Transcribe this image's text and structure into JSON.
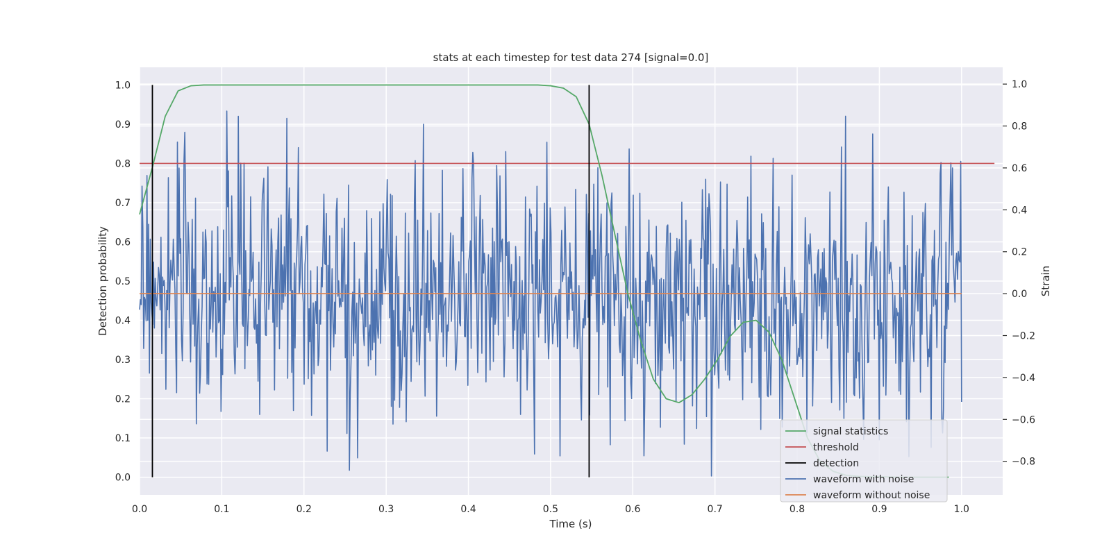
{
  "chart_data": {
    "type": "line",
    "title": "stats at each timestep for test data 274 [signal=0.0]",
    "xlabel": "Time (s)",
    "ylabel": "Detection probability",
    "y2label": "Strain",
    "xlim": [
      0.0,
      1.05
    ],
    "ylim": [
      -0.045,
      1.045
    ],
    "y2lim": [
      -0.96,
      1.08
    ],
    "xticks": [
      0.0,
      0.1,
      0.2,
      0.3,
      0.4,
      0.5,
      0.6,
      0.7,
      0.8,
      0.9,
      1.0
    ],
    "xtick_labels": [
      "0.0",
      "0.1",
      "0.2",
      "0.3",
      "0.4",
      "0.5",
      "0.6",
      "0.7",
      "0.8",
      "0.9",
      "1.0"
    ],
    "yticks": [
      0.0,
      0.1,
      0.2,
      0.3,
      0.4,
      0.5,
      0.6,
      0.7,
      0.8,
      0.9,
      1.0
    ],
    "ytick_labels": [
      "0.0",
      "0.1",
      "0.2",
      "0.3",
      "0.4",
      "0.5",
      "0.6",
      "0.7",
      "0.8",
      "0.9",
      "1.0"
    ],
    "y2ticks": [
      -0.8,
      -0.6,
      -0.4,
      -0.2,
      0.0,
      0.2,
      0.4,
      0.6,
      0.8,
      1.0
    ],
    "y2tick_labels": [
      "−0.8",
      "−0.6",
      "−0.4",
      "−0.2",
      "0.0",
      "0.2",
      "0.4",
      "0.6",
      "0.8",
      "1.0"
    ],
    "grid": true,
    "legend_position": "lower-right",
    "series": [
      {
        "name": "signal statistics",
        "axis": "left",
        "color": "#55a868",
        "x": [
          0.0,
          0.0156,
          0.0312,
          0.0469,
          0.0625,
          0.0781,
          0.0938,
          0.1094,
          0.125,
          0.1406,
          0.1562,
          0.1719,
          0.1875,
          0.2031,
          0.2188,
          0.2344,
          0.25,
          0.2656,
          0.2812,
          0.2969,
          0.3125,
          0.3281,
          0.3438,
          0.3594,
          0.375,
          0.3906,
          0.4062,
          0.4219,
          0.4375,
          0.4531,
          0.4688,
          0.4844,
          0.5,
          0.5156,
          0.5312,
          0.5469,
          0.5625,
          0.5781,
          0.5938,
          0.6094,
          0.625,
          0.6406,
          0.6562,
          0.6719,
          0.6875,
          0.7031,
          0.7188,
          0.7344,
          0.75,
          0.7656,
          0.7812,
          0.7969,
          0.8125,
          0.8281,
          0.8438,
          0.8594,
          0.875,
          0.8906,
          0.9062,
          0.9219,
          0.9375,
          0.9531,
          0.9688,
          0.9844
        ],
        "values": [
          0.67,
          0.79,
          0.92,
          0.985,
          0.998,
          1.0,
          1.0,
          1.0,
          1.0,
          1.0,
          1.0,
          1.0,
          1.0,
          1.0,
          1.0,
          1.0,
          1.0,
          1.0,
          1.0,
          1.0,
          1.0,
          1.0,
          1.0,
          1.0,
          1.0,
          1.0,
          1.0,
          1.0,
          1.0,
          1.0,
          1.0,
          1.0,
          0.998,
          0.992,
          0.97,
          0.9,
          0.77,
          0.62,
          0.47,
          0.35,
          0.25,
          0.2,
          0.19,
          0.21,
          0.25,
          0.3,
          0.36,
          0.395,
          0.4,
          0.37,
          0.3,
          0.2,
          0.1,
          0.04,
          0.015,
          0.005,
          0.002,
          0.001,
          0.001,
          0.0,
          0.0,
          0.0,
          0.0,
          0.0
        ]
      },
      {
        "name": "threshold",
        "axis": "left",
        "color": "#c44e52",
        "x": [
          0.0,
          1.04
        ],
        "values": [
          0.8,
          0.8
        ]
      },
      {
        "name": "detection",
        "axis": "left",
        "color": "#000000",
        "type": "vlines",
        "x": [
          0.0156,
          0.5469
        ],
        "ymin": 0.0,
        "ymax": 1.0
      },
      {
        "name": "waveform with noise",
        "axis": "right",
        "color": "#4c72b0",
        "generated": {
          "n": 1000,
          "t0": 0.0,
          "t1": 1.0,
          "mean": 0.0,
          "amp": 0.3,
          "max": 1.0,
          "min": -0.87,
          "seed": 274
        }
      },
      {
        "name": "waveform without noise",
        "axis": "right",
        "color": "#dd8452",
        "x": [
          0.0,
          1.0
        ],
        "values": [
          0.0,
          0.0
        ]
      }
    ]
  },
  "legend": {
    "items": [
      {
        "label": "signal statistics",
        "color": "#55a868"
      },
      {
        "label": "threshold",
        "color": "#c44e52"
      },
      {
        "label": "detection",
        "color": "#000000"
      },
      {
        "label": "waveform with noise",
        "color": "#4c72b0"
      },
      {
        "label": "waveform without noise",
        "color": "#dd8452"
      }
    ]
  }
}
